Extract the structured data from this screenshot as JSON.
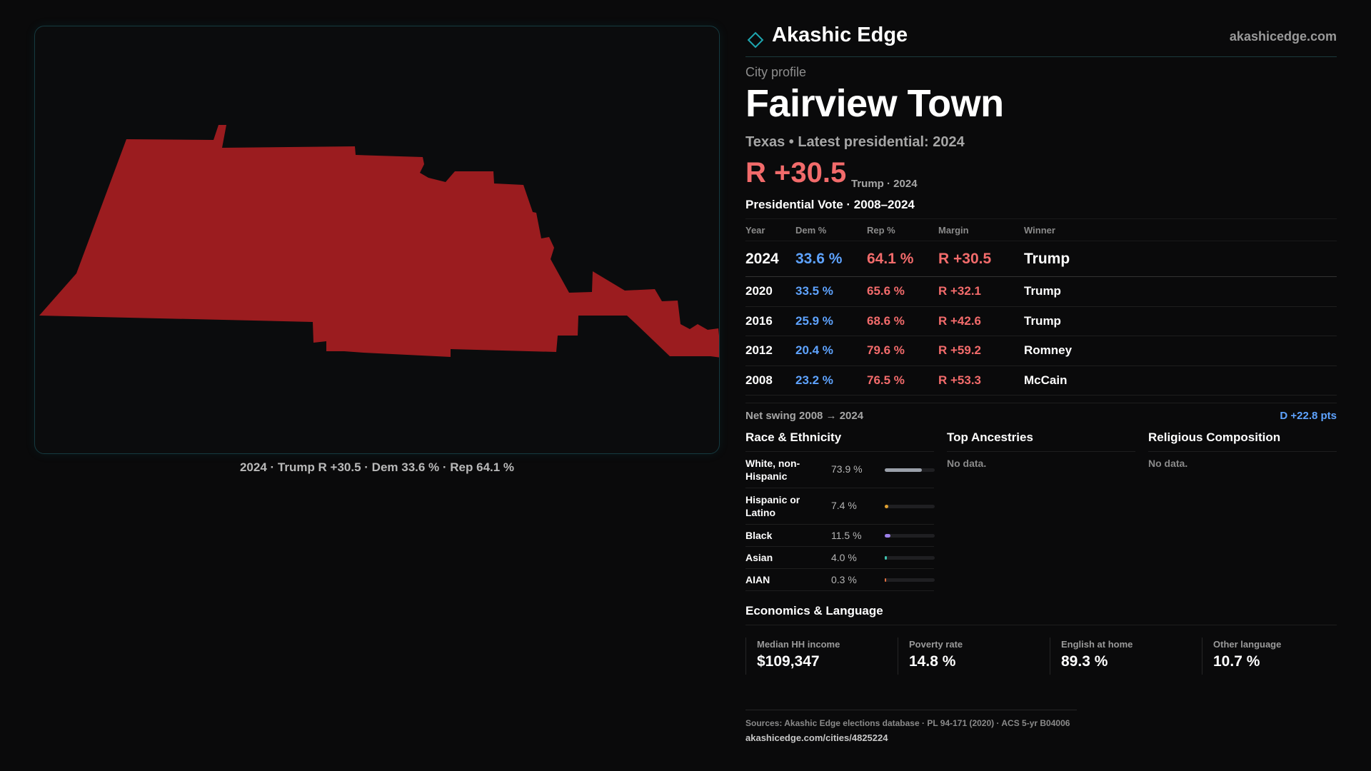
{
  "map": {
    "caption": "2024 · Trump R +30.5 · Dem 33.6 % · Rep 64.1 %",
    "fill_color": "#9b1c1f"
  },
  "header": {
    "logo_icon": "diamond-outline-icon",
    "brand": "Akashic Edge",
    "domain": "akashicedge.com"
  },
  "profile": {
    "kicker": "City profile",
    "title": "Fairview Town",
    "subline": "Texas • Latest presidential: 2024",
    "margin": "R +30.5",
    "margin_note": "Trump · 2024"
  },
  "vote": {
    "title": "Presidential Vote · 2008–2024",
    "columns": [
      "Year",
      "Dem %",
      "Rep %",
      "Margin",
      "Winner"
    ],
    "rows": [
      {
        "year": "2024",
        "dem": "33.6 %",
        "rep": "64.1 %",
        "margin": "R +30.5",
        "winner": "Trump"
      },
      {
        "year": "2020",
        "dem": "33.5 %",
        "rep": "65.6 %",
        "margin": "R +32.1",
        "winner": "Trump"
      },
      {
        "year": "2016",
        "dem": "25.9 %",
        "rep": "68.6 %",
        "margin": "R +42.6",
        "winner": "Trump"
      },
      {
        "year": "2012",
        "dem": "20.4 %",
        "rep": "79.6 %",
        "margin": "R +59.2",
        "winner": "Romney"
      },
      {
        "year": "2008",
        "dem": "23.2 %",
        "rep": "76.5 %",
        "margin": "R +53.3",
        "winner": "McCain"
      }
    ],
    "swing_label": "Net swing 2008 → 2024",
    "swing_value": "D +22.8 pts",
    "dem_color": "#5ea3ff",
    "rep_color": "#f26b6b"
  },
  "race": {
    "title": "Race & Ethnicity",
    "rows": [
      {
        "label": "White, non-Hispanic",
        "pct": "73.9 %",
        "fraction": 0.739,
        "color": "#9aa0aa"
      },
      {
        "label": "Hispanic or Latino",
        "pct": "7.4 %",
        "fraction": 0.074,
        "color": "#e0a030"
      },
      {
        "label": "Black",
        "pct": "11.5 %",
        "fraction": 0.115,
        "color": "#9b7fe8"
      },
      {
        "label": "Asian",
        "pct": "4.0 %",
        "fraction": 0.04,
        "color": "#3fc4b0"
      },
      {
        "label": "AIAN",
        "pct": "0.3 %",
        "fraction": 0.003,
        "color": "#e07040"
      }
    ]
  },
  "ancestries": {
    "title": "Top Ancestries",
    "empty": "No data."
  },
  "religion": {
    "title": "Religious Composition",
    "empty": "No data."
  },
  "economics": {
    "title": "Economics & Language",
    "cells": [
      {
        "label": "Median HH income",
        "value": "$109,347"
      },
      {
        "label": "Poverty rate",
        "value": "14.8 %"
      },
      {
        "label": "English at home",
        "value": "89.3 %"
      },
      {
        "label": "Other language",
        "value": "10.7 %"
      }
    ]
  },
  "sources": {
    "text": "Sources: Akashic Edge elections database · PL 94-171 (2020) · ACS 5-yr B04006",
    "url": "akashicedge.com/cities/4825224"
  }
}
